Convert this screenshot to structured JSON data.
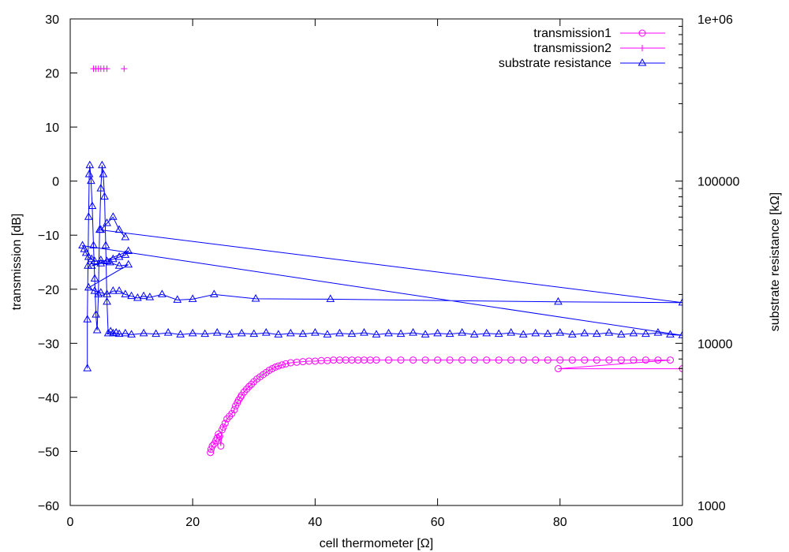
{
  "chart_data": {
    "type": "scatter",
    "xlabel": "cell thermometer [Ω]",
    "ylabel": "transmission [dB]",
    "y2label": "substrate resistance [kΩ]",
    "xlim": [
      0,
      100
    ],
    "ylim": [
      -60,
      30
    ],
    "y2lim": [
      1000,
      1000000
    ],
    "y2scale": "log",
    "grid": false,
    "legend_position": "top-right",
    "x_ticks": [
      "0",
      "20",
      "40",
      "60",
      "80",
      "100"
    ],
    "y_ticks": [
      "−60",
      "−50",
      "−40",
      "−30",
      "−20",
      "−10",
      "0",
      "10",
      "20",
      "30"
    ],
    "y2_ticks": [
      "1000",
      "10000",
      "100000",
      "1e+06"
    ],
    "colors": {
      "transmission": "#ff00ff",
      "resistance": "#0000ff"
    },
    "series": [
      {
        "name": "transmission1",
        "axis": "left",
        "marker": "circle",
        "line": true,
        "points": [
          [
            22.9,
            -50.2
          ],
          [
            23.0,
            -49.6
          ],
          [
            23.2,
            -49.0
          ],
          [
            23.5,
            -48.6
          ],
          [
            23.8,
            -48.0
          ],
          [
            24.0,
            -47.5
          ],
          [
            24.2,
            -46.8
          ],
          [
            24.4,
            -47.2
          ],
          [
            24.6,
            -49.0
          ],
          [
            24.8,
            -46.0
          ],
          [
            25.0,
            -45.5
          ],
          [
            25.3,
            -44.8
          ],
          [
            25.6,
            -44.0
          ],
          [
            26.0,
            -43.5
          ],
          [
            26.4,
            -43.0
          ],
          [
            26.8,
            -42.3
          ],
          [
            27.0,
            -41.6
          ],
          [
            27.3,
            -41.0
          ],
          [
            27.5,
            -40.5
          ],
          [
            27.8,
            -40.0
          ],
          [
            28.0,
            -39.6
          ],
          [
            28.4,
            -39.0
          ],
          [
            28.8,
            -38.5
          ],
          [
            29.2,
            -38.0
          ],
          [
            29.6,
            -37.6
          ],
          [
            30.0,
            -37.1
          ],
          [
            30.5,
            -36.6
          ],
          [
            31.0,
            -36.2
          ],
          [
            31.5,
            -35.8
          ],
          [
            32.0,
            -35.4
          ],
          [
            32.5,
            -35.0
          ],
          [
            33.0,
            -34.7
          ],
          [
            33.5,
            -34.4
          ],
          [
            34.0,
            -34.2
          ],
          [
            34.6,
            -34.0
          ],
          [
            35.2,
            -33.8
          ],
          [
            36.0,
            -33.6
          ],
          [
            37.0,
            -33.5
          ],
          [
            38.0,
            -33.4
          ],
          [
            39.0,
            -33.3
          ],
          [
            40.0,
            -33.3
          ],
          [
            41.0,
            -33.2
          ],
          [
            42.0,
            -33.2
          ],
          [
            43.0,
            -33.1
          ],
          [
            44.0,
            -33.1
          ],
          [
            45.0,
            -33.1
          ],
          [
            46.0,
            -33.1
          ],
          [
            47.0,
            -33.1
          ],
          [
            48.0,
            -33.1
          ],
          [
            49.0,
            -33.1
          ],
          [
            50.0,
            -33.1
          ],
          [
            52.0,
            -33.1
          ],
          [
            54.0,
            -33.1
          ],
          [
            56.0,
            -33.1
          ],
          [
            58.0,
            -33.1
          ],
          [
            60.0,
            -33.1
          ],
          [
            62.0,
            -33.1
          ],
          [
            64.0,
            -33.1
          ],
          [
            66.0,
            -33.1
          ],
          [
            68.0,
            -33.1
          ],
          [
            70.0,
            -33.1
          ],
          [
            72.0,
            -33.1
          ],
          [
            74.0,
            -33.1
          ],
          [
            76.0,
            -33.1
          ],
          [
            78.0,
            -33.1
          ],
          [
            80.0,
            -33.1
          ],
          [
            82.0,
            -33.1
          ],
          [
            84.0,
            -33.1
          ],
          [
            86.0,
            -33.1
          ],
          [
            88.0,
            -33.1
          ],
          [
            90.0,
            -33.1
          ],
          [
            92.0,
            -33.1
          ],
          [
            94.0,
            -33.1
          ],
          [
            96.0,
            -33.1
          ],
          [
            98.0,
            -33.1
          ],
          [
            79.7,
            -34.7
          ],
          [
            100,
            -34.7
          ]
        ]
      },
      {
        "name": "transmission2",
        "axis": "left",
        "marker": "plus",
        "line": false,
        "points": [
          [
            3.8,
            20.8
          ],
          [
            4.2,
            20.8
          ],
          [
            4.6,
            20.8
          ],
          [
            5.0,
            20.8
          ],
          [
            5.5,
            20.8
          ],
          [
            6.0,
            20.8
          ],
          [
            8.8,
            20.8
          ]
        ]
      },
      {
        "name": "substrate resistance",
        "axis": "right",
        "marker": "triangle",
        "line": true,
        "points": [
          [
            2.8,
            7000
          ],
          [
            2.8,
            14000
          ],
          [
            2.9,
            30000
          ],
          [
            3.0,
            60000
          ],
          [
            3.1,
            110000
          ],
          [
            3.2,
            125000
          ],
          [
            3.4,
            100000
          ],
          [
            3.6,
            70000
          ],
          [
            3.8,
            40000
          ],
          [
            4.0,
            25000
          ],
          [
            4.2,
            15000
          ],
          [
            4.4,
            12000
          ],
          [
            4.6,
            20000
          ],
          [
            4.8,
            50000
          ],
          [
            5.0,
            90000
          ],
          [
            5.2,
            125000
          ],
          [
            5.4,
            110000
          ],
          [
            5.6,
            80000
          ],
          [
            5.8,
            40000
          ],
          [
            6.0,
            18000
          ],
          [
            6.2,
            11500
          ],
          [
            6.6,
            11800
          ],
          [
            7.0,
            11500
          ],
          [
            7.5,
            11600
          ],
          [
            8.0,
            11400
          ],
          [
            9.0,
            11500
          ],
          [
            10.0,
            11300
          ],
          [
            12.0,
            11500
          ],
          [
            14.0,
            11400
          ],
          [
            16.0,
            11600
          ],
          [
            18.0,
            11300
          ],
          [
            20.0,
            11500
          ],
          [
            22.0,
            11400
          ],
          [
            24.0,
            11600
          ],
          [
            26.0,
            11300
          ],
          [
            28.0,
            11500
          ],
          [
            30.0,
            11400
          ],
          [
            32.0,
            11600
          ],
          [
            34.0,
            11300
          ],
          [
            36.0,
            11500
          ],
          [
            38.0,
            11400
          ],
          [
            40.0,
            11600
          ],
          [
            42.0,
            11300
          ],
          [
            44.0,
            11500
          ],
          [
            46.0,
            11400
          ],
          [
            48.0,
            11600
          ],
          [
            50.0,
            11300
          ],
          [
            52.0,
            11500
          ],
          [
            54.0,
            11400
          ],
          [
            56.0,
            11600
          ],
          [
            58.0,
            11300
          ],
          [
            60.0,
            11500
          ],
          [
            62.0,
            11400
          ],
          [
            64.0,
            11600
          ],
          [
            66.0,
            11300
          ],
          [
            68.0,
            11500
          ],
          [
            70.0,
            11400
          ],
          [
            72.0,
            11600
          ],
          [
            74.0,
            11300
          ],
          [
            76.0,
            11500
          ],
          [
            78.0,
            11400
          ],
          [
            80.0,
            11600
          ],
          [
            82.0,
            11300
          ],
          [
            84.0,
            11500
          ],
          [
            86.0,
            11400
          ],
          [
            88.0,
            11600
          ],
          [
            90.0,
            11300
          ],
          [
            92.0,
            11500
          ],
          [
            94.0,
            11400
          ],
          [
            96.0,
            11600
          ],
          [
            98.0,
            11300
          ],
          [
            100,
            11200
          ],
          [
            2.0,
            40000
          ],
          [
            2.3,
            38000
          ],
          [
            2.6,
            36000
          ],
          [
            3.0,
            34000
          ],
          [
            3.5,
            33000
          ],
          [
            4.0,
            32000
          ],
          [
            5.0,
            32500
          ],
          [
            6.0,
            32000
          ],
          [
            7.0,
            33000
          ],
          [
            8.0,
            34000
          ],
          [
            9.0,
            35000
          ],
          [
            9.5,
            37000
          ],
          [
            3.5,
            30000
          ],
          [
            5.0,
            31000
          ],
          [
            6.5,
            31500
          ],
          [
            8.0,
            30000
          ],
          [
            9.5,
            30500
          ],
          [
            3.0,
            22000
          ],
          [
            4.0,
            21000
          ],
          [
            5.0,
            20500
          ],
          [
            6.0,
            20000
          ],
          [
            7.0,
            21000
          ],
          [
            8.0,
            21000
          ],
          [
            9.0,
            20000
          ],
          [
            10.0,
            19500
          ],
          [
            11.0,
            19000
          ],
          [
            12.0,
            19500
          ],
          [
            13.0,
            19200
          ],
          [
            15.0,
            20000
          ],
          [
            17.5,
            18500
          ],
          [
            20.0,
            18700
          ],
          [
            23.5,
            20000
          ],
          [
            30.3,
            18800
          ],
          [
            42.5,
            18700
          ],
          [
            79.7,
            18000
          ],
          [
            100,
            17800
          ],
          [
            5.0,
            50000
          ],
          [
            6.0,
            55000
          ],
          [
            7.0,
            60000
          ],
          [
            8.0,
            50000
          ],
          [
            9.0,
            45000
          ]
        ]
      }
    ]
  }
}
